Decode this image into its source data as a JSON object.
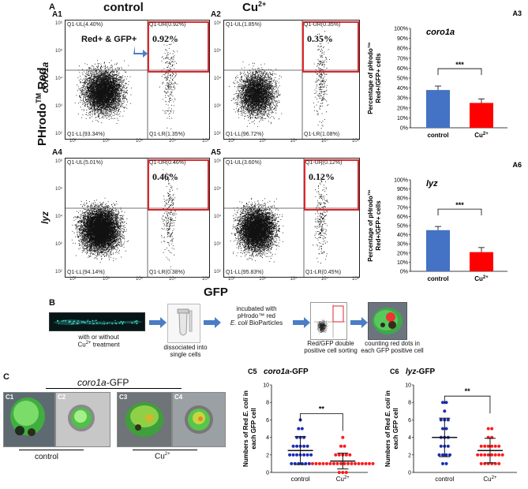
{
  "panelA": {
    "letter": "A",
    "col_control": "control",
    "col_cu": "Cu",
    "cu_sup": "2+",
    "ylabel_main": "PHrodo",
    "ylabel_tm": "TM",
    "ylabel_red": " Red",
    "xlabel": "GFP",
    "row1": "coro1a",
    "row2": "lyz",
    "flow": [
      {
        "id": "A1",
        "ul": "Q1-UL(4.40%)",
        "ur": "Q1-UR(0.92%)",
        "ll": "Q1-LL(93.34%)",
        "lr": "Q1-LR(1.35%)",
        "pct": "0.92%",
        "annot": "Red+ & GFP+"
      },
      {
        "id": "A2",
        "ul": "Q1-UL(1.85%)",
        "ur": "Q1-UR(0.35%)",
        "ll": "Q1-LL(96.72%)",
        "lr": "Q1-LR(1.08%)",
        "pct": "0.35%"
      },
      {
        "id": "A4",
        "ul": "Q1-UL(5.01%)",
        "ur": "Q1-UR(0.46%)",
        "ll": "Q1-LL(94.14%)",
        "lr": "Q1-LR(0.38%)",
        "pct": "0.46%"
      },
      {
        "id": "A5",
        "ul": "Q1-UL(3.60%)",
        "ur": "Q1-UR(0.12%)",
        "ll": "Q1-LL(95.83%)",
        "lr": "Q1-LR(0.45%)",
        "pct": "0.12%"
      }
    ],
    "xticks": [
      "10²",
      "10³",
      "10⁴",
      "10⁵",
      "10⁶"
    ],
    "yticks": [
      "10⁶",
      "10⁵",
      "10⁴",
      "10³",
      "10²"
    ]
  },
  "barA3": {
    "label": "A3",
    "gene": "coro1a",
    "ylabel1": "Percentage of pHrodo™",
    "ylabel2": "Red+/GFP+ cells",
    "yticks": [
      "100%",
      "90%",
      "80%",
      "70%",
      "60%",
      "50%",
      "40%",
      "30%",
      "20%",
      "10%",
      "0%"
    ],
    "cats": [
      "control",
      "Cu"
    ],
    "cu_sup": "2+",
    "sig": "***"
  },
  "barA6": {
    "label": "A6",
    "gene": "lyz",
    "ylabel1": "Percentage of pHrodo™",
    "ylabel2": "Red+/GFP+ cells",
    "yticks": [
      "100%",
      "90%",
      "80%",
      "70%",
      "60%",
      "50%",
      "40%",
      "30%",
      "20%",
      "10%",
      "0%"
    ],
    "cats": [
      "control",
      "Cu"
    ],
    "cu_sup": "2+",
    "sig": "***"
  },
  "panelB": {
    "letter": "B",
    "step1a": "with  or without",
    "step1b": "Cu",
    "step1c": " treatment",
    "step2a": "dissociated into",
    "step2b": "single cells",
    "step3a": "incubated with",
    "step3b": "pHrodo™ red",
    "step3c": "E. coli",
    "step3d": " BioParticles",
    "step4a": "Red/GFP double",
    "step4b": "positive cell  sorting",
    "step5a": "counting red dots in",
    "step5b": "each GFP positive cell"
  },
  "panelC": {
    "letter": "C",
    "title_gene": "coro1a",
    "title_suffix": "-GFP",
    "imgs": [
      "C1",
      "C2",
      "C3",
      "C4"
    ],
    "lbl_control": "control",
    "lbl_cu": "Cu",
    "cu_sup": "2+"
  },
  "chartC5": {
    "label": "C5",
    "gene": "coro1a",
    "suffix": "-GFP",
    "ylabel1": "Numbers of Red ",
    "ylabel_ecoli": "E. coli",
    "ylabel2": " in",
    "ylabel3": "each GFP cell",
    "yticks": [
      "10",
      "8",
      "6",
      "4",
      "2",
      "0"
    ],
    "cats": [
      "control",
      "Cu"
    ],
    "cu_sup": "2+",
    "sig": "**"
  },
  "chartC6": {
    "label": "C6",
    "gene": "lyz",
    "suffix": "-GFP",
    "ylabel1": "Numbers of Red ",
    "ylabel_ecoli": "E. coli",
    "ylabel2": " in",
    "ylabel3": "each GFP cell",
    "yticks": [
      "10",
      "8",
      "6",
      "4",
      "2",
      "0"
    ],
    "cats": [
      "control",
      "Cu"
    ],
    "cu_sup": "2+",
    "sig": "**"
  },
  "chart_data": [
    {
      "type": "bar",
      "label": "A3",
      "categories": [
        "control",
        "Cu2+"
      ],
      "values": [
        38,
        25
      ],
      "errors": [
        4,
        4
      ],
      "ylim": [
        0,
        100
      ],
      "colors": [
        "#4472c4",
        "#ff0000"
      ]
    },
    {
      "type": "bar",
      "label": "A6",
      "categories": [
        "control",
        "Cu2+"
      ],
      "values": [
        45,
        21
      ],
      "errors": [
        4,
        5
      ],
      "ylim": [
        0,
        100
      ],
      "colors": [
        "#4472c4",
        "#ff0000"
      ]
    },
    {
      "type": "scatter",
      "label": "C5",
      "ylim": [
        0,
        10
      ],
      "mean": [
        2.5,
        1.3
      ],
      "sd": [
        1.6,
        0.9
      ],
      "series": [
        {
          "name": "control",
          "color": "#1a2db5",
          "values": [
            6,
            5,
            5,
            4,
            4,
            4,
            3,
            3,
            3,
            3,
            3,
            2,
            2,
            2,
            2,
            2,
            2,
            2,
            1,
            1,
            1,
            1,
            1,
            1
          ]
        },
        {
          "name": "Cu2+",
          "color": "#ff1a1a",
          "values": [
            4,
            3,
            3,
            2,
            2,
            2,
            2,
            2,
            1,
            1,
            1,
            1,
            1,
            1,
            1,
            1,
            1,
            1,
            1,
            1,
            1,
            1,
            1,
            1,
            1,
            1,
            0,
            0,
            0
          ]
        }
      ]
    },
    {
      "type": "scatter",
      "label": "C6",
      "ylim": [
        0,
        10
      ],
      "mean": [
        4,
        2.5
      ],
      "sd": [
        2.2,
        1.4
      ],
      "series": [
        {
          "name": "control",
          "color": "#1a2db5",
          "values": [
            8,
            8,
            7,
            6,
            6,
            6,
            5,
            5,
            4,
            4,
            4,
            3,
            3,
            3,
            2,
            2,
            2,
            2,
            1,
            1
          ]
        },
        {
          "name": "Cu2+",
          "color": "#ff1a1a",
          "values": [
            5,
            5,
            4,
            4,
            3,
            3,
            3,
            3,
            3,
            3,
            2,
            2,
            2,
            2,
            2,
            2,
            2,
            2,
            1,
            1,
            1,
            1,
            1,
            1
          ]
        }
      ]
    }
  ]
}
